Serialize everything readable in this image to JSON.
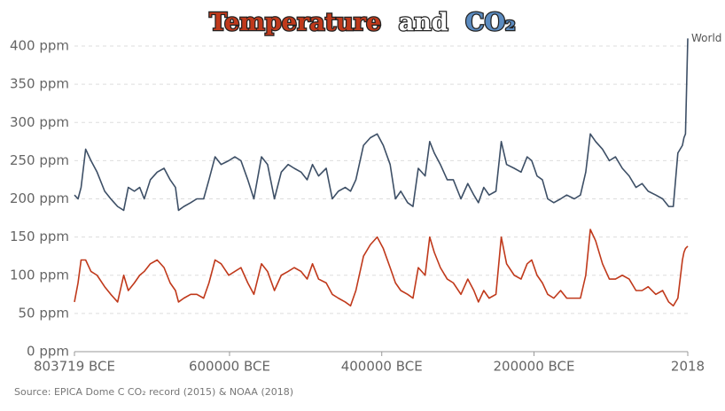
{
  "chart_data": {
    "type": "line",
    "title": [
      "Temperature",
      "and",
      "CO₂"
    ],
    "title_colors": [
      "#c0391b",
      "#ffffff",
      "#5b8bc0"
    ],
    "source": "Source: EPICA Dome C CO₂ record (2015) & NOAA (2018)",
    "x": [
      -803719,
      -799000,
      -795000,
      -789000,
      -782000,
      -774000,
      -764000,
      -756000,
      -747000,
      -739000,
      -733000,
      -725000,
      -718000,
      -712000,
      -704000,
      -695000,
      -686000,
      -678000,
      -671000,
      -667000,
      -660000,
      -651000,
      -643000,
      -634000,
      -627000,
      -619000,
      -611000,
      -601000,
      -593000,
      -585000,
      -576000,
      -568000,
      -558000,
      -550000,
      -541000,
      -532000,
      -523000,
      -515000,
      -506000,
      -498000,
      -491000,
      -483000,
      -473000,
      -465000,
      -457000,
      -448000,
      -441000,
      -434000,
      -424000,
      -415000,
      -406000,
      -398000,
      -389000,
      -382000,
      -375000,
      -366000,
      -359000,
      -352000,
      -343000,
      -337000,
      -331000,
      -323000,
      -314000,
      -306000,
      -296000,
      -287000,
      -279000,
      -273000,
      -266000,
      -259000,
      -250000,
      -243000,
      -236000,
      -226000,
      -217000,
      -209000,
      -203000,
      -196000,
      -189000,
      -182000,
      -174000,
      -165000,
      -157000,
      -147000,
      -139000,
      -132000,
      -126000,
      -119000,
      -110000,
      -101000,
      -93000,
      -84000,
      -75000,
      -66000,
      -58000,
      -50000,
      -40000,
      -31000,
      -23000,
      -17000,
      -11000,
      -5000,
      -3000,
      -1000,
      2018
    ],
    "series": [
      {
        "name": "World",
        "color": "#3d4f66",
        "values": [
          205,
          200,
          215,
          265,
          250,
          235,
          210,
          200,
          190,
          185,
          215,
          210,
          215,
          200,
          225,
          235,
          240,
          225,
          215,
          185,
          190,
          195,
          200,
          200,
          225,
          255,
          245,
          250,
          255,
          250,
          225,
          200,
          255,
          245,
          200,
          235,
          245,
          240,
          235,
          225,
          245,
          230,
          240,
          200,
          210,
          215,
          210,
          225,
          270,
          280,
          285,
          270,
          245,
          200,
          210,
          195,
          190,
          240,
          230,
          275,
          260,
          245,
          225,
          225,
          200,
          220,
          205,
          195,
          215,
          205,
          210,
          275,
          245,
          240,
          235,
          255,
          250,
          230,
          225,
          200,
          195,
          200,
          205,
          200,
          205,
          235,
          285,
          275,
          265,
          250,
          255,
          240,
          230,
          215,
          220,
          210,
          205,
          200,
          190,
          190,
          260,
          270,
          280,
          285,
          410
        ]
      },
      {
        "color": "#c0391b",
        "values": [
          65,
          90,
          120,
          120,
          105,
          100,
          85,
          75,
          65,
          100,
          80,
          90,
          100,
          105,
          115,
          120,
          110,
          90,
          80,
          65,
          70,
          75,
          75,
          70,
          90,
          120,
          115,
          100,
          105,
          110,
          90,
          75,
          115,
          105,
          80,
          100,
          105,
          110,
          105,
          95,
          115,
          95,
          90,
          75,
          70,
          65,
          60,
          80,
          125,
          140,
          150,
          135,
          110,
          90,
          80,
          75,
          70,
          110,
          100,
          150,
          130,
          110,
          95,
          90,
          75,
          95,
          80,
          65,
          80,
          70,
          75,
          150,
          115,
          100,
          95,
          115,
          120,
          100,
          90,
          75,
          70,
          80,
          70,
          70,
          70,
          100,
          160,
          145,
          115,
          95,
          95,
          100,
          95,
          80,
          80,
          85,
          75,
          80,
          65,
          60,
          70,
          120,
          130,
          135,
          138
        ]
      }
    ],
    "xlim": [
      -803719,
      2018
    ],
    "xticks": [
      {
        "value": -803719,
        "label": "803719 BCE"
      },
      {
        "value": -600000,
        "label": "600000 BCE"
      },
      {
        "value": -400000,
        "label": "400000 BCE"
      },
      {
        "value": -200000,
        "label": "200000 BCE"
      },
      2018
    ],
    "ylim": [
      0,
      400
    ],
    "yticks": [
      {
        "value": 0,
        "label": "0 ppm"
      },
      {
        "value": 50,
        "label": "50 ppm"
      },
      {
        "value": 100,
        "label": "100 ppm"
      },
      {
        "value": 150,
        "label": "150 ppm"
      },
      {
        "value": 200,
        "label": "200 ppm"
      },
      {
        "value": 250,
        "label": "250 ppm"
      },
      {
        "value": 300,
        "label": "300 ppm"
      },
      {
        "value": 350,
        "label": "350 ppm"
      },
      {
        "value": 400,
        "label": "400 ppm"
      }
    ],
    "grid": true
  }
}
